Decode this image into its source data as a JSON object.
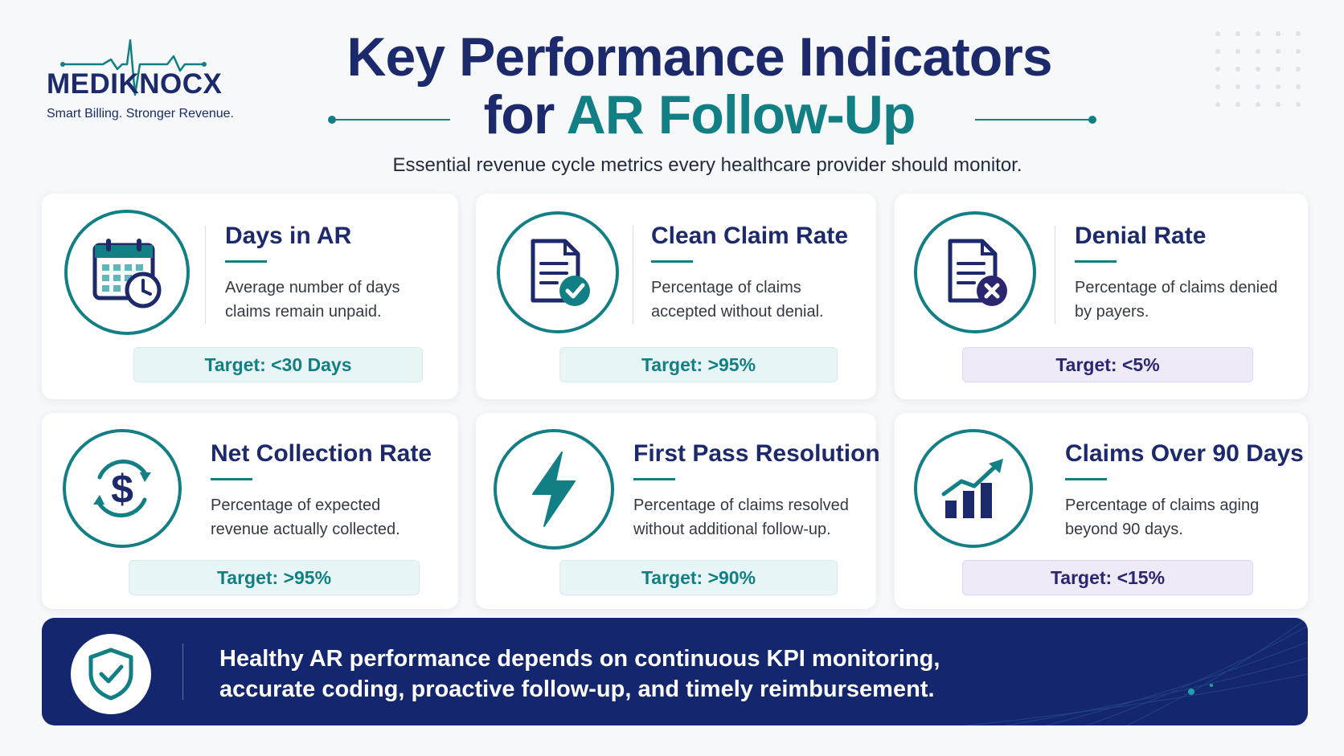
{
  "brand": {
    "name": "MEDIKNOCX",
    "tagline": "Smart Billing. Stronger Revenue."
  },
  "header": {
    "title_line1": "Key Performance Indicators",
    "title_line2_prefix": "for",
    "title_line2_accent": "AR Follow-Up",
    "subtitle": "Essential revenue cycle metrics every healthcare provider should monitor."
  },
  "kpis": [
    {
      "title": "Days in AR",
      "description": "Average number of days claims remain unpaid.",
      "target": "Target: <30 Days",
      "icon": "calendar-clock-icon",
      "pill_color": "teal"
    },
    {
      "title": "Clean Claim Rate",
      "description": "Percentage of claims accepted without denial.",
      "target": "Target: >95%",
      "icon": "document-check-icon",
      "pill_color": "teal"
    },
    {
      "title": "Denial Rate",
      "description": "Percentage of claims denied by payers.",
      "target": "Target: <5%",
      "icon": "document-x-icon",
      "pill_color": "purple"
    },
    {
      "title": "Net Collection Rate",
      "description": "Percentage of expected revenue actually collected.",
      "target": "Target: >95%",
      "icon": "dollar-cycle-icon",
      "pill_color": "teal"
    },
    {
      "title": "First Pass Resolution",
      "description": "Percentage of claims resolved without additional follow-up.",
      "target": "Target: >90%",
      "icon": "lightning-icon",
      "pill_color": "teal"
    },
    {
      "title": "Claims Over 90 Days",
      "description": "Percentage of claims aging beyond 90 days.",
      "target": "Target: <15%",
      "icon": "growth-chart-icon",
      "pill_color": "purple"
    }
  ],
  "footer": {
    "message": "Healthy AR performance depends on continuous KPI monitoring, accurate coding, proactive follow-up, and timely reimbursement.",
    "icon": "shield-check-icon"
  },
  "colors": {
    "navy": "#1c2a6b",
    "teal": "#127f85",
    "purple": "#2a2670",
    "banner": "#14266e"
  }
}
